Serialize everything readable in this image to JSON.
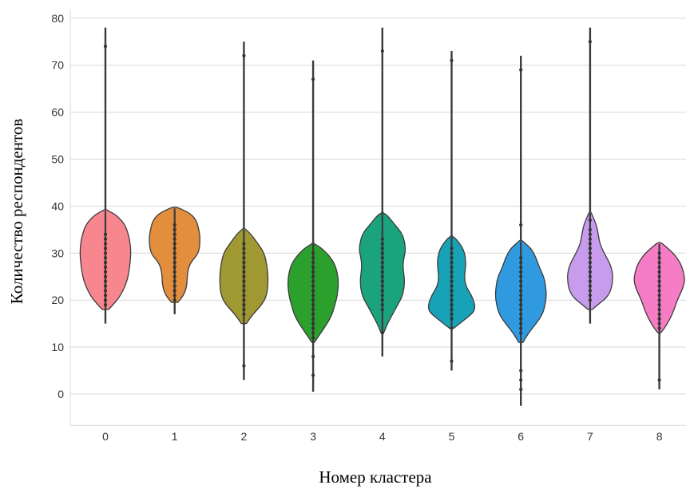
{
  "chart_data": {
    "type": "violin",
    "xlabel": "Номер кластера",
    "ylabel": "Количество респондентов",
    "ylim": [
      -6,
      81
    ],
    "yticks": [
      0,
      10,
      20,
      30,
      40,
      50,
      60,
      70,
      80
    ],
    "grid": true,
    "categories": [
      "0",
      "1",
      "2",
      "3",
      "4",
      "5",
      "6",
      "7",
      "8"
    ],
    "series": [
      {
        "category": "0",
        "color": "#f8868f",
        "min": 15,
        "max": 78,
        "body_min": 18,
        "body_max": 39,
        "profile": [
          [
            18,
            0.12
          ],
          [
            19,
            0.3
          ],
          [
            21,
            0.6
          ],
          [
            24,
            0.85
          ],
          [
            27,
            0.95
          ],
          [
            30,
            1.0
          ],
          [
            33,
            0.95
          ],
          [
            36,
            0.78
          ],
          [
            38,
            0.45
          ],
          [
            39,
            0.12
          ]
        ],
        "points": [
          19,
          20,
          21,
          22,
          23,
          24,
          25,
          26,
          27,
          28,
          29,
          30,
          31,
          32,
          33,
          34,
          74
        ]
      },
      {
        "category": "1",
        "color": "#e28e3d",
        "min": 17,
        "max": 39.5,
        "body_min": 19.5,
        "body_max": 39.5,
        "profile": [
          [
            19.5,
            0.12
          ],
          [
            21,
            0.35
          ],
          [
            23,
            0.48
          ],
          [
            26,
            0.5
          ],
          [
            28,
            0.62
          ],
          [
            30,
            0.95
          ],
          [
            33,
            1.0
          ],
          [
            35,
            0.95
          ],
          [
            37,
            0.85
          ],
          [
            38.5,
            0.6
          ],
          [
            39.5,
            0.2
          ]
        ],
        "points": [
          20,
          21,
          22,
          23,
          24,
          25,
          26,
          27,
          28,
          29,
          30,
          31,
          32,
          33,
          34,
          35,
          36
        ]
      },
      {
        "category": "2",
        "color": "#a09932",
        "min": 3,
        "max": 75,
        "body_min": 15,
        "body_max": 35,
        "profile": [
          [
            15,
            0.1
          ],
          [
            17,
            0.35
          ],
          [
            19,
            0.7
          ],
          [
            21,
            0.9
          ],
          [
            24,
            0.95
          ],
          [
            27,
            0.92
          ],
          [
            30,
            0.8
          ],
          [
            32,
            0.55
          ],
          [
            34,
            0.28
          ],
          [
            35,
            0.08
          ]
        ],
        "points": [
          6,
          17,
          18,
          19,
          20,
          21,
          22,
          23,
          24,
          25,
          26,
          27,
          28,
          29,
          30,
          31,
          32,
          72
        ]
      },
      {
        "category": "3",
        "color": "#2ca02c",
        "min": 0.5,
        "max": 71,
        "body_min": 11,
        "body_max": 32,
        "profile": [
          [
            11,
            0.05
          ],
          [
            13,
            0.3
          ],
          [
            15,
            0.55
          ],
          [
            17,
            0.75
          ],
          [
            19,
            0.85
          ],
          [
            21,
            0.95
          ],
          [
            24,
            1.0
          ],
          [
            27,
            0.9
          ],
          [
            29,
            0.7
          ],
          [
            31,
            0.35
          ],
          [
            32,
            0.05
          ]
        ],
        "points": [
          4,
          8,
          12,
          13,
          14,
          15,
          16,
          17,
          18,
          19,
          20,
          21,
          22,
          23,
          24,
          25,
          26,
          27,
          28,
          29,
          30,
          67
        ]
      },
      {
        "category": "4",
        "color": "#1ba37d",
        "min": 8,
        "max": 78,
        "body_min": 13,
        "body_max": 38.5,
        "profile": [
          [
            13,
            0.05
          ],
          [
            15,
            0.2
          ],
          [
            17,
            0.4
          ],
          [
            19,
            0.6
          ],
          [
            21,
            0.8
          ],
          [
            24,
            0.88
          ],
          [
            27,
            0.8
          ],
          [
            29,
            0.84
          ],
          [
            31,
            0.92
          ],
          [
            34,
            0.8
          ],
          [
            36,
            0.5
          ],
          [
            38,
            0.2
          ],
          [
            38.5,
            0.05
          ]
        ],
        "points": [
          13,
          18,
          19,
          20,
          21,
          22,
          23,
          24,
          25,
          26,
          27,
          28,
          29,
          30,
          31,
          32,
          33,
          73
        ]
      },
      {
        "category": "5",
        "color": "#17a2b8",
        "min": 5,
        "max": 73,
        "body_min": 14,
        "body_max": 33.5,
        "profile": [
          [
            14,
            0.08
          ],
          [
            16,
            0.55
          ],
          [
            17.5,
            0.88
          ],
          [
            19,
            0.92
          ],
          [
            21,
            0.78
          ],
          [
            23,
            0.55
          ],
          [
            25,
            0.5
          ],
          [
            27,
            0.55
          ],
          [
            29,
            0.55
          ],
          [
            31,
            0.45
          ],
          [
            33,
            0.18
          ],
          [
            33.5,
            0.05
          ]
        ],
        "points": [
          7,
          14,
          16,
          17,
          18,
          19,
          20,
          21,
          22,
          23,
          24,
          25,
          26,
          27,
          28,
          29,
          30,
          31,
          71
        ]
      },
      {
        "category": "6",
        "color": "#2f9ae0",
        "min": -2.5,
        "max": 72,
        "body_min": 11,
        "body_max": 32.5,
        "profile": [
          [
            11,
            0.08
          ],
          [
            13,
            0.3
          ],
          [
            15,
            0.6
          ],
          [
            17,
            0.85
          ],
          [
            19,
            0.95
          ],
          [
            21,
            1.0
          ],
          [
            23,
            0.97
          ],
          [
            25,
            0.9
          ],
          [
            27,
            0.72
          ],
          [
            29,
            0.6
          ],
          [
            31,
            0.4
          ],
          [
            32.5,
            0.08
          ]
        ],
        "points": [
          1,
          3,
          5,
          13,
          14,
          15,
          16,
          17,
          18,
          19,
          20,
          21,
          22,
          23,
          24,
          25,
          26,
          27,
          28,
          29,
          36,
          69
        ]
      },
      {
        "category": "7",
        "color": "#c79ced",
        "min": 15,
        "max": 78,
        "body_min": 18,
        "body_max": 38.5,
        "profile": [
          [
            18,
            0.08
          ],
          [
            19,
            0.3
          ],
          [
            21,
            0.75
          ],
          [
            24,
            0.9
          ],
          [
            27,
            0.85
          ],
          [
            30,
            0.55
          ],
          [
            32,
            0.38
          ],
          [
            34,
            0.32
          ],
          [
            36,
            0.25
          ],
          [
            38.5,
            0.05
          ]
        ],
        "points": [
          20,
          21,
          22,
          23,
          24,
          25,
          26,
          27,
          28,
          29,
          30,
          31,
          32,
          33,
          34,
          35,
          37,
          75
        ]
      },
      {
        "category": "8",
        "color": "#f77cc6",
        "min": 1,
        "max": 32,
        "body_min": 13,
        "body_max": 32,
        "profile": [
          [
            13,
            0.05
          ],
          [
            14,
            0.2
          ],
          [
            16,
            0.42
          ],
          [
            18,
            0.58
          ],
          [
            20,
            0.7
          ],
          [
            22,
            0.88
          ],
          [
            24,
            1.0
          ],
          [
            26,
            0.95
          ],
          [
            28,
            0.82
          ],
          [
            30,
            0.55
          ],
          [
            32,
            0.12
          ]
        ],
        "points": [
          3,
          14,
          15,
          16,
          17,
          18,
          19,
          20,
          21,
          22,
          23,
          24,
          25,
          26,
          27,
          28,
          29,
          30
        ]
      }
    ]
  }
}
